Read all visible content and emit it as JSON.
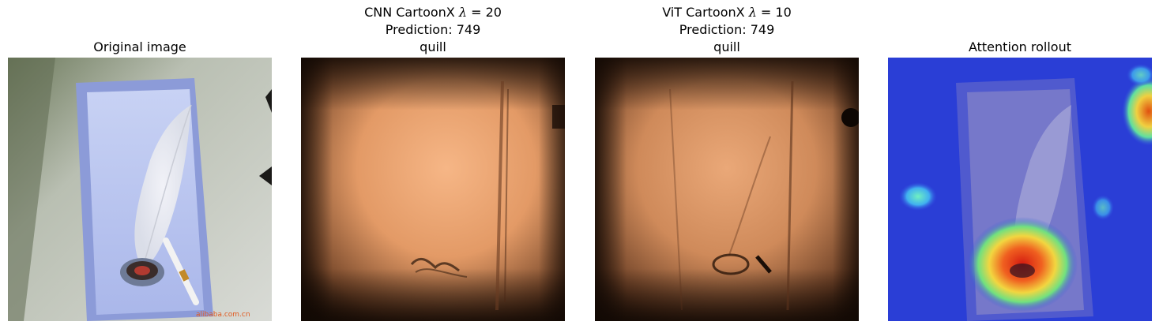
{
  "panels": [
    {
      "title_lines": [
        "Original image"
      ],
      "image": "photo-feather-quill-in-blue-box"
    },
    {
      "title_lines": [
        "CNN CartoonX λ = 20",
        "Prediction: 749",
        "quill"
      ],
      "title_parts": {
        "prefix": "CNN CartoonX ",
        "lambda": "λ",
        "lambda_value": " = 20"
      },
      "image": "cartoonx-explanation-copper"
    },
    {
      "title_lines": [
        "ViT CartoonX λ = 10",
        "Prediction: 749",
        "quill"
      ],
      "title_parts": {
        "prefix": "ViT CartoonX ",
        "lambda": "λ",
        "lambda_value": " = 10"
      },
      "image": "cartoonx-explanation-copper"
    },
    {
      "title_lines": [
        "Attention rollout"
      ],
      "image": "attention-heatmap-overlay"
    }
  ],
  "watermark": "alibaba.com.cn",
  "colors": {
    "box_blue": "#b8c4ee",
    "background_gray": "#cfd2cd",
    "copper_light": "#f0ad7a",
    "copper_dark": "#1a0e07",
    "heat_blue": "#2a3cd8",
    "heat_red": "#d81a10"
  }
}
